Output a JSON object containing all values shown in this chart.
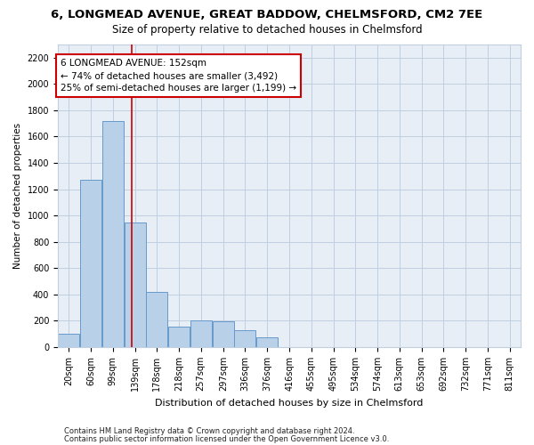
{
  "title": "6, LONGMEAD AVENUE, GREAT BADDOW, CHELMSFORD, CM2 7EE",
  "subtitle": "Size of property relative to detached houses in Chelmsford",
  "xlabel": "Distribution of detached houses by size in Chelmsford",
  "ylabel": "Number of detached properties",
  "categories": [
    "20sqm",
    "60sqm",
    "99sqm",
    "139sqm",
    "178sqm",
    "218sqm",
    "257sqm",
    "297sqm",
    "336sqm",
    "376sqm",
    "416sqm",
    "455sqm",
    "495sqm",
    "534sqm",
    "574sqm",
    "613sqm",
    "653sqm",
    "692sqm",
    "732sqm",
    "771sqm",
    "811sqm"
  ],
  "values": [
    100,
    1270,
    1720,
    950,
    420,
    155,
    200,
    195,
    130,
    75,
    0,
    0,
    0,
    0,
    0,
    0,
    0,
    0,
    0,
    0,
    0
  ],
  "bar_color": "#b8d0e8",
  "bar_edge_color": "#6699cc",
  "grid_color": "#c0d0e0",
  "background_color": "#e8eef6",
  "annotation_line1": "6 LONGMEAD AVENUE: 152sqm",
  "annotation_line2": "← 74% of detached houses are smaller (3,492)",
  "annotation_line3": "25% of semi-detached houses are larger (1,199) →",
  "annotation_box_color": "#ffffff",
  "annotation_box_edge": "#cc0000",
  "vline_color": "#cc0000",
  "ylim": [
    0,
    2300
  ],
  "yticks": [
    0,
    200,
    400,
    600,
    800,
    1000,
    1200,
    1400,
    1600,
    1800,
    2000,
    2200
  ],
  "footer1": "Contains HM Land Registry data © Crown copyright and database right 2024.",
  "footer2": "Contains public sector information licensed under the Open Government Licence v3.0.",
  "title_fontsize": 9.5,
  "subtitle_fontsize": 8.5,
  "xlabel_fontsize": 8,
  "ylabel_fontsize": 7.5,
  "tick_fontsize": 7,
  "footer_fontsize": 6,
  "annotation_fontsize": 7.5
}
